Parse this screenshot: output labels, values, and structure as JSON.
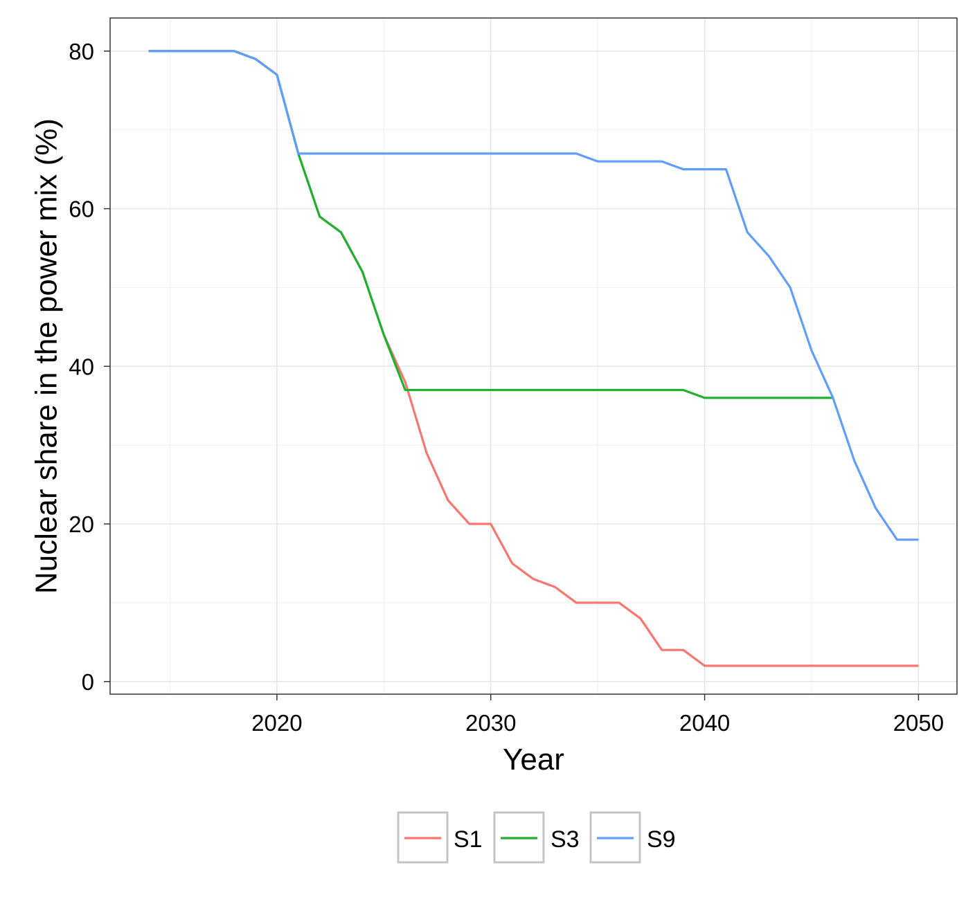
{
  "chart_data": {
    "type": "line",
    "xlabel": "Year",
    "ylabel": "Nuclear share in the power mix (%)",
    "xlim": [
      2012.2,
      2051.8
    ],
    "ylim": [
      -1.6,
      84.2
    ],
    "x_ticks": [
      2020,
      2030,
      2040,
      2050
    ],
    "y_ticks": [
      0,
      20,
      40,
      60,
      80
    ],
    "grid": true,
    "legend_position": "bottom",
    "series": [
      {
        "name": "S1",
        "color": "#f8766d",
        "x": [
          2014,
          2015,
          2016,
          2017,
          2018,
          2019,
          2020,
          2021,
          2022,
          2023,
          2024,
          2025,
          2026,
          2027,
          2028,
          2029,
          2030,
          2031,
          2032,
          2033,
          2034,
          2035,
          2036,
          2037,
          2038,
          2039,
          2040,
          2041,
          2042,
          2043,
          2044,
          2045,
          2046,
          2047,
          2048,
          2049,
          2050
        ],
        "values": [
          80,
          80,
          80,
          80,
          80,
          79,
          77,
          67,
          59,
          57,
          52,
          44,
          38,
          29,
          23,
          20,
          20,
          15,
          13,
          12,
          10,
          10,
          10,
          8,
          4,
          4,
          2,
          2,
          2,
          2,
          2,
          2,
          2,
          2,
          2,
          2,
          2
        ]
      },
      {
        "name": "S3",
        "color": "#1fb031",
        "x": [
          2014,
          2015,
          2016,
          2017,
          2018,
          2019,
          2020,
          2021,
          2022,
          2023,
          2024,
          2025,
          2026,
          2027,
          2028,
          2029,
          2030,
          2031,
          2032,
          2033,
          2034,
          2035,
          2036,
          2037,
          2038,
          2039,
          2040,
          2041,
          2042,
          2043,
          2044,
          2045,
          2046
        ],
        "values": [
          80,
          80,
          80,
          80,
          80,
          79,
          77,
          67,
          59,
          57,
          52,
          44,
          37,
          37,
          37,
          37,
          37,
          37,
          37,
          37,
          37,
          37,
          37,
          37,
          37,
          37,
          36,
          36,
          36,
          36,
          36,
          36,
          36
        ]
      },
      {
        "name": "S9",
        "color": "#619cff",
        "x": [
          2014,
          2015,
          2016,
          2017,
          2018,
          2019,
          2020,
          2021,
          2022,
          2023,
          2024,
          2025,
          2026,
          2027,
          2028,
          2029,
          2030,
          2031,
          2032,
          2033,
          2034,
          2035,
          2036,
          2037,
          2038,
          2039,
          2040,
          2041,
          2042,
          2043,
          2044,
          2045,
          2046,
          2047,
          2048,
          2049,
          2050
        ],
        "values": [
          80,
          80,
          80,
          80,
          80,
          79,
          77,
          67,
          67,
          67,
          67,
          67,
          67,
          67,
          67,
          67,
          67,
          67,
          67,
          67,
          67,
          66,
          66,
          66,
          66,
          65,
          65,
          65,
          57,
          54,
          50,
          42,
          36,
          28,
          22,
          18,
          18
        ]
      }
    ]
  }
}
